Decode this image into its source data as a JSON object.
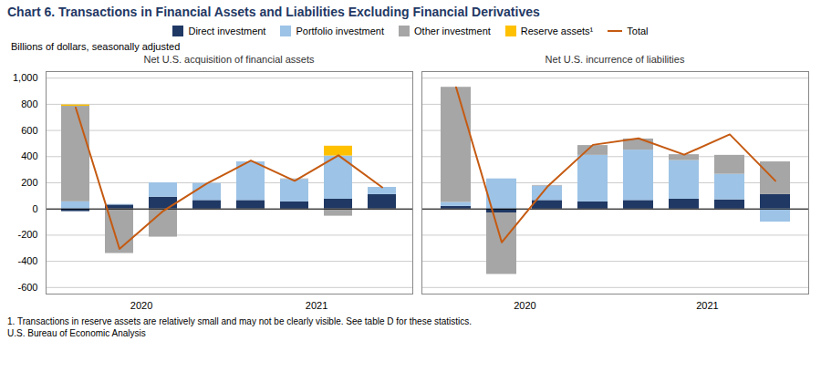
{
  "chart_data": [
    {
      "type": "bar",
      "stacked": true,
      "title": "Chart 6. Transactions in Financial Assets and Liabilities Excluding Financial Derivatives",
      "subtitle": "Net U.S. acquisition of financial assets",
      "ylabel": "Billions of dollars, seasonally adjusted",
      "annotations": [
        "1. Transactions in reserve assets are relatively small and may not be clearly visible. See table D for these statistics.",
        "U.S. Bureau of Economic Analysis"
      ],
      "categories": [
        null,
        "2020",
        null,
        null,
        null,
        "2021",
        null,
        null
      ],
      "series": [
        {
          "name": "Direct investment",
          "color": "#1F3864",
          "values": [
            -20,
            30,
            90,
            65,
            65,
            55,
            75,
            110
          ]
        },
        {
          "name": "Portfolio investment",
          "color": "#9DC3E6",
          "values": [
            55,
            5,
            110,
            130,
            295,
            170,
            330,
            55
          ]
        },
        {
          "name": "Other investment",
          "color": "#A6A6A6",
          "values": [
            730,
            -340,
            -215,
            0,
            -5,
            5,
            -55,
            -5
          ]
        },
        {
          "name": "Reserve assets¹",
          "color": "#FFC000",
          "values": [
            10,
            0,
            0,
            0,
            0,
            0,
            75,
            0
          ]
        },
        {
          "name": "Total",
          "type": "line",
          "color": "#C55A11",
          "values": [
            775,
            -305,
            -15,
            195,
            370,
            215,
            410,
            165
          ]
        }
      ],
      "ylim": [
        -650,
        1050
      ],
      "yticks": [
        -600,
        -400,
        -200,
        0,
        200,
        400,
        600,
        800,
        {
          "value": 1000,
          "label": "1,000"
        }
      ],
      "grid": true,
      "legend": "top"
    },
    {
      "type": "bar",
      "stacked": true,
      "subtitle": "Net U.S. incurrence of liabilities",
      "categories": [
        null,
        "2020",
        null,
        null,
        null,
        "2021",
        null,
        null
      ],
      "series": [
        {
          "name": "Direct investment",
          "color": "#1F3864",
          "values": [
            20,
            -30,
            65,
            55,
            65,
            75,
            70,
            110
          ]
        },
        {
          "name": "Portfolio investment",
          "color": "#9DC3E6",
          "values": [
            30,
            230,
            110,
            355,
            385,
            295,
            195,
            -100
          ]
        },
        {
          "name": "Other investment",
          "color": "#A6A6A6",
          "values": [
            880,
            -470,
            5,
            75,
            85,
            45,
            145,
            250
          ]
        },
        {
          "name": "Reserve assets¹",
          "color": "#FFC000",
          "values": [
            0,
            0,
            0,
            0,
            0,
            0,
            0,
            0
          ]
        },
        {
          "name": "Total",
          "type": "line",
          "color": "#C55A11",
          "values": [
            930,
            -255,
            170,
            490,
            540,
            415,
            570,
            215
          ]
        }
      ],
      "ylim": [
        -650,
        1050
      ],
      "yticks": [
        -600,
        -400,
        -200,
        0,
        200,
        400,
        600,
        800,
        {
          "value": 1000,
          "label": "1,000"
        }
      ],
      "grid": true,
      "tick_labels": "x"
    }
  ]
}
